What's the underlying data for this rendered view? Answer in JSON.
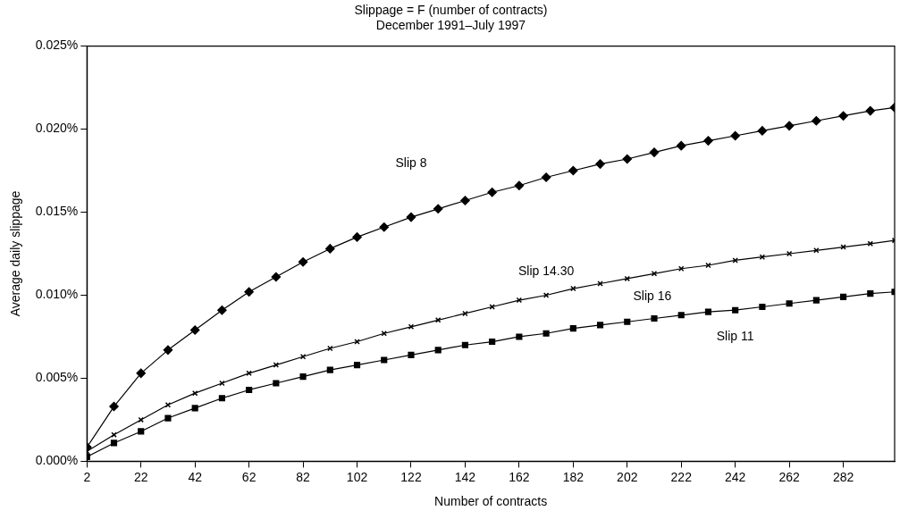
{
  "chart_data": {
    "type": "line",
    "title": "Slippage = F (number of contracts)",
    "subtitle": "December 1991–July 1997",
    "xlabel": "Number of contracts",
    "ylabel": "Average daily slippage",
    "x": [
      2,
      12,
      22,
      32,
      42,
      52,
      62,
      72,
      82,
      92,
      102,
      112,
      122,
      132,
      142,
      152,
      162,
      172,
      182,
      192,
      202,
      212,
      222,
      232,
      242,
      252,
      262,
      272,
      282,
      292,
      301
    ],
    "series": [
      {
        "name": "Slip 8",
        "color": "#000000",
        "marker": "diamond",
        "values": [
          0.00085,
          0.0033,
          0.0053,
          0.0067,
          0.0079,
          0.0091,
          0.0102,
          0.0111,
          0.012,
          0.0128,
          0.0135,
          0.0141,
          0.0147,
          0.0152,
          0.0157,
          0.0162,
          0.0166,
          0.0171,
          0.0175,
          0.0179,
          0.0182,
          0.0186,
          0.019,
          0.0193,
          0.0196,
          0.0199,
          0.0202,
          0.0205,
          0.0208,
          0.0211,
          0.0213
        ]
      },
      {
        "name": "Slip 14.30",
        "color": "#000000",
        "marker": "cross",
        "values": [
          0.0006,
          0.0016,
          0.0025,
          0.0034,
          0.0041,
          0.0047,
          0.0053,
          0.0058,
          0.0063,
          0.0068,
          0.0072,
          0.0077,
          0.0081,
          0.0085,
          0.0089,
          0.0093,
          0.0097,
          0.01,
          0.0104,
          0.0107,
          0.011,
          0.0113,
          0.0116,
          0.0118,
          0.0121,
          0.0123,
          0.0125,
          0.0127,
          0.0129,
          0.0131,
          0.0133
        ]
      },
      {
        "name": "Slip 11",
        "color": "#000000",
        "marker": "square",
        "values": [
          0.00027,
          0.0011,
          0.0018,
          0.0026,
          0.0032,
          0.0038,
          0.0043,
          0.0047,
          0.0051,
          0.0055,
          0.0058,
          0.0061,
          0.0064,
          0.0067,
          0.007,
          0.0072,
          0.0075,
          0.0077,
          0.008,
          0.0082,
          0.0084,
          0.0086,
          0.0088,
          0.009,
          0.0091,
          0.0093,
          0.0095,
          0.0097,
          0.0099,
          0.0101,
          0.0102
        ]
      }
    ],
    "xlim": [
      2,
      301
    ],
    "xticks": [
      2,
      22,
      42,
      62,
      82,
      102,
      122,
      142,
      162,
      182,
      202,
      222,
      242,
      262,
      282
    ],
    "ylim": [
      0,
      0.025
    ],
    "yticks": [
      {
        "value": 0,
        "label": "0.000%"
      },
      {
        "value": 0.005,
        "label": "0.005%"
      },
      {
        "value": 0.01,
        "label": "0.010%"
      },
      {
        "value": 0.015,
        "label": "0.015%"
      },
      {
        "value": 0.02,
        "label": "0.020%"
      },
      {
        "value": 0.025,
        "label": "0.025%"
      }
    ],
    "annotations": [
      "Slip 16"
    ]
  }
}
